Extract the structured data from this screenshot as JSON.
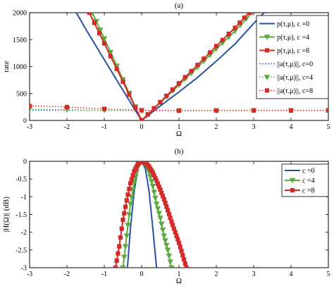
{
  "chart_data": [
    {
      "type": "line",
      "title": "(a)",
      "xlabel": "Ω",
      "ylabel": "rate",
      "xlim": [
        -3,
        5
      ],
      "ylim": [
        0,
        2000
      ],
      "xticks": [
        -3,
        -2,
        -1,
        0,
        1,
        2,
        3,
        4,
        5
      ],
      "yticks": [
        0,
        500,
        1000,
        1500,
        2000
      ],
      "legend_position": "top-right",
      "series": [
        {
          "name": "p(τ,μ), c =0",
          "color": "#2a4fa3",
          "style": "solid",
          "marker": "none",
          "x": [
            -1.75,
            -1.5,
            -1.0,
            -0.5,
            0,
            0.5,
            1.0,
            1.5,
            2.0,
            2.5,
            3.0,
            3.28
          ],
          "y": [
            2000,
            1700,
            1130,
            560,
            0,
            270,
            530,
            800,
            1100,
            1420,
            1800,
            2000
          ]
        },
        {
          "name": "p(τ,μ), c =4",
          "color": "#5aab3c",
          "style": "solid",
          "marker": "triangle-down",
          "x": [
            -1.32,
            -1.0,
            -0.5,
            0,
            0.5,
            1.0,
            1.5,
            2.0,
            2.5,
            2.95
          ],
          "y": [
            2000,
            1520,
            760,
            0,
            330,
            660,
            990,
            1330,
            1660,
            2000
          ]
        },
        {
          "name": "p(τ,μ), c =8",
          "color": "#d42a2a",
          "style": "solid",
          "marker": "square",
          "x": [
            -1.4,
            -1.0,
            -0.5,
            0,
            0.5,
            1.0,
            1.5,
            2.0,
            2.5,
            2.88
          ],
          "y": [
            2000,
            1430,
            720,
            0,
            340,
            690,
            1030,
            1380,
            1720,
            2000
          ]
        },
        {
          "name": "||a(τ,μ)||, c=0",
          "color": "#2a4fa3",
          "style": "dotted",
          "marker": "none",
          "x": [
            -3,
            -2,
            -1,
            0,
            1,
            2,
            3,
            4,
            5
          ],
          "y": [
            190,
            190,
            188,
            185,
            185,
            187,
            188,
            188,
            188
          ]
        },
        {
          "name": "||a(τ,μ)||, c=4",
          "color": "#5aab3c",
          "style": "dotted",
          "marker": "triangle-down",
          "x": [
            -3,
            -2,
            -1,
            0,
            1,
            2,
            3,
            4,
            5
          ],
          "y": [
            210,
            200,
            190,
            180,
            185,
            185,
            186,
            186,
            186
          ]
        },
        {
          "name": "||a(τ,μ)||, c=8",
          "color": "#d42a2a",
          "style": "dotted",
          "marker": "square",
          "x": [
            -3,
            -2,
            -1,
            0,
            1,
            2,
            3,
            4,
            5
          ],
          "y": [
            270,
            250,
            215,
            190,
            180,
            183,
            185,
            185,
            185
          ]
        }
      ]
    },
    {
      "type": "line",
      "title": "(b)",
      "xlabel": "Ω",
      "ylabel": "|H(Ω)| (dB)",
      "xlim": [
        -3,
        5
      ],
      "ylim": [
        -3,
        0
      ],
      "xticks": [
        -3,
        -2,
        -1,
        0,
        1,
        2,
        3,
        4,
        5
      ],
      "yticks": [
        0,
        -0.5,
        -1,
        -1.5,
        -2,
        -2.5,
        -3
      ],
      "legend_position": "top-right",
      "series": [
        {
          "name": "c =0",
          "color": "#2a4fa3",
          "marker": "none",
          "x": [
            -0.38,
            -0.3,
            -0.2,
            -0.1,
            0,
            0.1,
            0.2,
            0.3,
            0.4
          ],
          "y": [
            -3.0,
            -1.9,
            -0.85,
            -0.21,
            0,
            -0.21,
            -0.85,
            -1.9,
            -3.0
          ]
        },
        {
          "name": "c =4",
          "color": "#5aab3c",
          "marker": "triangle-down",
          "x": [
            -0.5,
            -0.4,
            -0.3,
            -0.2,
            -0.1,
            0,
            0.1,
            0.2,
            0.3,
            0.4,
            0.5,
            0.6,
            0.7,
            0.8
          ],
          "y": [
            -3.0,
            -2.1,
            -1.2,
            -0.6,
            -0.15,
            0,
            -0.08,
            -0.3,
            -0.7,
            -1.2,
            -1.6,
            -2.1,
            -2.5,
            -3.0
          ]
        },
        {
          "name": "c =8",
          "color": "#d42a2a",
          "marker": "square",
          "x": [
            -0.7,
            -0.6,
            -0.5,
            -0.4,
            -0.3,
            -0.2,
            -0.1,
            0,
            0.1,
            0.2,
            0.3,
            0.4,
            0.5,
            0.6,
            0.7,
            0.8,
            0.9,
            1.0,
            1.1,
            1.2
          ],
          "y": [
            -3.0,
            -2.4,
            -1.65,
            -1.1,
            -0.62,
            -0.28,
            -0.07,
            0,
            -0.04,
            -0.15,
            -0.32,
            -0.55,
            -0.8,
            -1.07,
            -1.38,
            -1.7,
            -2.0,
            -2.3,
            -2.65,
            -3.0
          ]
        }
      ]
    }
  ]
}
